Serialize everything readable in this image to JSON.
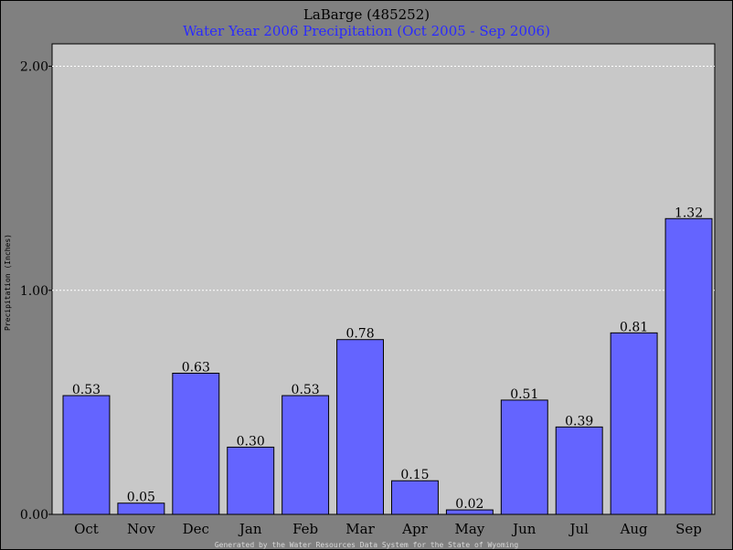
{
  "chart_data": {
    "type": "bar",
    "title": "LaBarge (485252)",
    "subtitle": "Water Year 2006 Precipitation (Oct 2005 - Sep 2006)",
    "ylabel": "Precipitation (Inches)",
    "xlabel": "",
    "categories": [
      "Oct",
      "Nov",
      "Dec",
      "Jan",
      "Feb",
      "Mar",
      "Apr",
      "May",
      "Jun",
      "Jul",
      "Aug",
      "Sep"
    ],
    "values": [
      0.53,
      0.05,
      0.63,
      0.3,
      0.53,
      0.78,
      0.15,
      0.02,
      0.51,
      0.39,
      0.81,
      1.32
    ],
    "value_labels": [
      "0.53",
      "0.05",
      "0.63",
      "0.30",
      "0.53",
      "0.78",
      "0.15",
      "0.02",
      "0.51",
      "0.39",
      "0.81",
      "1.32"
    ],
    "yticks": [
      0,
      1,
      2
    ],
    "ytick_labels": [
      "0.00",
      "1.00",
      "2.00"
    ],
    "ylim": [
      0,
      2.1
    ],
    "grid": true,
    "bar_color": "#6464ff",
    "plot_bg": "#c8c8c8",
    "subtitle_color": "#2a2aff"
  },
  "footer": "Generated by the Water Resources Data System for the State of Wyoming"
}
